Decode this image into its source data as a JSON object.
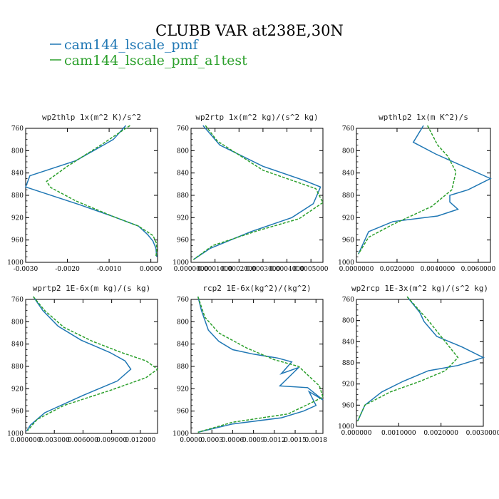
{
  "title": "CLUBB VAR at238E,30N",
  "legend": [
    {
      "label": "cam144_lscale_pmf",
      "color": "#1f77b4",
      "dash": "solid"
    },
    {
      "label": "cam144_lscale_pmf_a1test",
      "color": "#2ca02c",
      "dash": "dashed"
    }
  ],
  "chart_data": [
    {
      "type": "line",
      "title": "wp2thlp  1x(m^2 K)/s^2",
      "xlim": [
        -0.003,
        0.00016
      ],
      "ylim": [
        760,
        1000
      ],
      "y_inverted": true,
      "yticks": [
        760,
        800,
        840,
        880,
        920,
        960,
        1000
      ],
      "xticks": [
        -0.003,
        -0.002,
        -0.001,
        0.0
      ],
      "xtick_labels": [
        "-0.0030",
        "-0.0020",
        "-0.0010",
        "0.0000"
      ],
      "series": [
        {
          "name": "cam144_lscale_pmf",
          "x": [
            -0.0006,
            -0.0009,
            -0.0018,
            -0.0029,
            -0.003,
            -0.0017,
            -0.0009,
            -0.0003,
            -8e-05,
            5e-05,
            0.00012,
            0.00014
          ],
          "y": [
            755,
            780,
            818,
            845,
            865,
            897,
            918,
            935,
            950,
            962,
            975,
            990
          ]
        },
        {
          "name": "cam144_lscale_pmf_a1test",
          "x": [
            -0.0005,
            -0.0012,
            -0.002,
            -0.0025,
            -0.0024,
            -0.0018,
            -0.0009,
            -0.0003,
            5e-05,
            0.00013,
            0.00014,
            0.00012
          ],
          "y": [
            755,
            790,
            828,
            855,
            866,
            890,
            918,
            935,
            952,
            965,
            978,
            990
          ]
        }
      ]
    },
    {
      "type": "line",
      "title": "wp2rtp  1x(m^2 kg)/(s^2 kg)",
      "xlim": [
        0.0,
        0.00055
      ],
      "ylim": [
        760,
        1000
      ],
      "y_inverted": true,
      "yticks": [
        760,
        800,
        840,
        880,
        920,
        960,
        1000
      ],
      "xticks": [
        0.0,
        0.0001,
        0.0002,
        0.0003,
        0.0004,
        0.0005
      ],
      "xtick_labels": [
        "0.0000000",
        "0.0001000",
        "0.0002000",
        "0.0003000",
        "0.0004000",
        "0.0005000"
      ],
      "series": [
        {
          "name": "cam144_lscale_pmf",
          "x": [
            5e-05,
            0.00012,
            0.0003,
            0.00047,
            0.00054,
            0.00051,
            0.00042,
            0.00025,
            8e-05,
            1e-05
          ],
          "y": [
            755,
            790,
            828,
            853,
            865,
            895,
            920,
            945,
            975,
            995
          ]
        },
        {
          "name": "cam144_lscale_pmf_a1test",
          "x": [
            6e-05,
            0.00011,
            0.0003,
            0.00052,
            0.00055,
            0.00045,
            0.00028,
            9e-05,
            1e-05
          ],
          "y": [
            755,
            783,
            835,
            868,
            893,
            922,
            943,
            970,
            995
          ]
        }
      ]
    },
    {
      "type": "line",
      "title": "wpthlp2  1x(m K^2)/s",
      "xlim": [
        0.0,
        0.0066
      ],
      "ylim": [
        760,
        1000
      ],
      "y_inverted": true,
      "yticks": [
        760,
        800,
        840,
        880,
        920,
        960,
        1000
      ],
      "xticks": [
        0.0,
        0.002,
        0.004,
        0.006
      ],
      "xtick_labels": [
        "0.0000000",
        "0.0020000",
        "0.0040000",
        "0.0060000"
      ],
      "series": [
        {
          "name": "cam144_lscale_pmf",
          "x": [
            0.0033,
            0.0028,
            0.0039,
            0.0066,
            0.0055,
            0.0046,
            0.0046,
            0.005,
            0.004,
            0.0018,
            0.0006,
            0.0001
          ],
          "y": [
            755,
            785,
            806,
            850,
            870,
            880,
            892,
            905,
            917,
            927,
            945,
            985
          ]
        },
        {
          "name": "cam144_lscale_pmf_a1test",
          "x": [
            0.0035,
            0.004,
            0.0045,
            0.0049,
            0.0047,
            0.0037,
            0.0018,
            0.0006,
            0.0001
          ],
          "y": [
            755,
            790,
            810,
            838,
            870,
            900,
            932,
            955,
            985
          ]
        }
      ]
    },
    {
      "type": "line",
      "title": "wprtp2  1E-6x(m kg)/(s kg)",
      "xlim": [
        0.0,
        0.0138
      ],
      "ylim": [
        760,
        1000
      ],
      "y_inverted": true,
      "yticks": [
        760,
        800,
        840,
        880,
        920,
        960,
        1000
      ],
      "xticks": [
        0.0,
        0.003,
        0.006,
        0.009,
        0.012
      ],
      "xtick_labels": [
        "0.000000",
        "0.003000",
        "0.006000",
        "0.009000",
        "0.012000"
      ],
      "series": [
        {
          "name": "cam144_lscale_pmf",
          "x": [
            0.0008,
            0.0018,
            0.0034,
            0.0058,
            0.0088,
            0.0104,
            0.011,
            0.0096,
            0.006,
            0.002,
            0.0005,
            0.0001
          ],
          "y": [
            755,
            780,
            808,
            833,
            855,
            870,
            885,
            906,
            932,
            963,
            985,
            996
          ]
        },
        {
          "name": "cam144_lscale_pmf_a1test",
          "x": [
            0.0008,
            0.002,
            0.004,
            0.007,
            0.01,
            0.0126,
            0.0138,
            0.0126,
            0.009,
            0.004,
            0.0012,
            0.0002
          ],
          "y": [
            755,
            780,
            810,
            835,
            855,
            870,
            885,
            900,
            922,
            950,
            975,
            995
          ]
        }
      ]
    },
    {
      "type": "line",
      "title": "rcp2  1E-6x(kg^2)/(kg^2)",
      "xlim": [
        0.0,
        0.0019
      ],
      "ylim": [
        760,
        1000
      ],
      "y_inverted": true,
      "yticks": [
        760,
        800,
        840,
        880,
        920,
        960,
        1000
      ],
      "xticks": [
        0.0,
        0.0003,
        0.0006,
        0.0009,
        0.0012,
        0.0015,
        0.0018
      ],
      "xtick_labels": [
        "0.0000",
        "0.0003",
        "0.0006",
        "0.0009",
        "0.0012",
        "0.0015",
        "0.0018"
      ],
      "series": [
        {
          "name": "cam144_lscale_pmf",
          "x": [
            0.0001,
            0.00015,
            0.00025,
            0.0004,
            0.0006,
            0.0009,
            0.00125,
            0.00145,
            0.0013,
            0.00155,
            0.00128,
            0.00168,
            0.0019,
            0.0017,
            0.0018,
            0.00162,
            0.0013,
            0.0006,
            0.0001
          ],
          "y": [
            755,
            780,
            815,
            835,
            850,
            858,
            865,
            872,
            893,
            882,
            915,
            918,
            940,
            925,
            950,
            960,
            972,
            983,
            998
          ]
        },
        {
          "name": "cam144_lscale_pmf_a1test",
          "x": [
            0.0001,
            0.0002,
            0.0004,
            0.0008,
            0.0012,
            0.00155,
            0.00185,
            0.0019,
            0.0014,
            0.0006,
            0.0001
          ],
          "y": [
            755,
            792,
            820,
            847,
            868,
            880,
            915,
            935,
            965,
            980,
            998
          ]
        }
      ]
    },
    {
      "type": "line",
      "title": "wp2rcp  1E-3x(m^2 kg)/(s^2 kg)",
      "xlim": [
        0.0,
        0.003
      ],
      "ylim": [
        760,
        1000
      ],
      "y_inverted": true,
      "yticks": [
        760,
        800,
        840,
        880,
        920,
        960,
        1000
      ],
      "xticks": [
        0.0,
        0.001,
        0.002,
        0.003
      ],
      "xtick_labels": [
        "0.000000",
        "0.0010000",
        "0.0020000",
        "0.0030000"
      ],
      "series": [
        {
          "name": "cam144_lscale_pmf",
          "x": [
            0.0012,
            0.0015,
            0.0016,
            0.0019,
            0.0025,
            0.003,
            0.0024,
            0.0017,
            0.0011,
            0.0006,
            0.0002,
            3e-05
          ],
          "y": [
            755,
            785,
            802,
            830,
            850,
            870,
            885,
            895,
            915,
            935,
            960,
            990
          ]
        },
        {
          "name": "cam144_lscale_pmf_a1test",
          "x": [
            0.0012,
            0.0017,
            0.0021,
            0.0024,
            0.0021,
            0.0015,
            0.0008,
            0.0002,
            3e-05
          ],
          "y": [
            755,
            800,
            840,
            870,
            895,
            915,
            935,
            960,
            990
          ]
        }
      ]
    }
  ]
}
